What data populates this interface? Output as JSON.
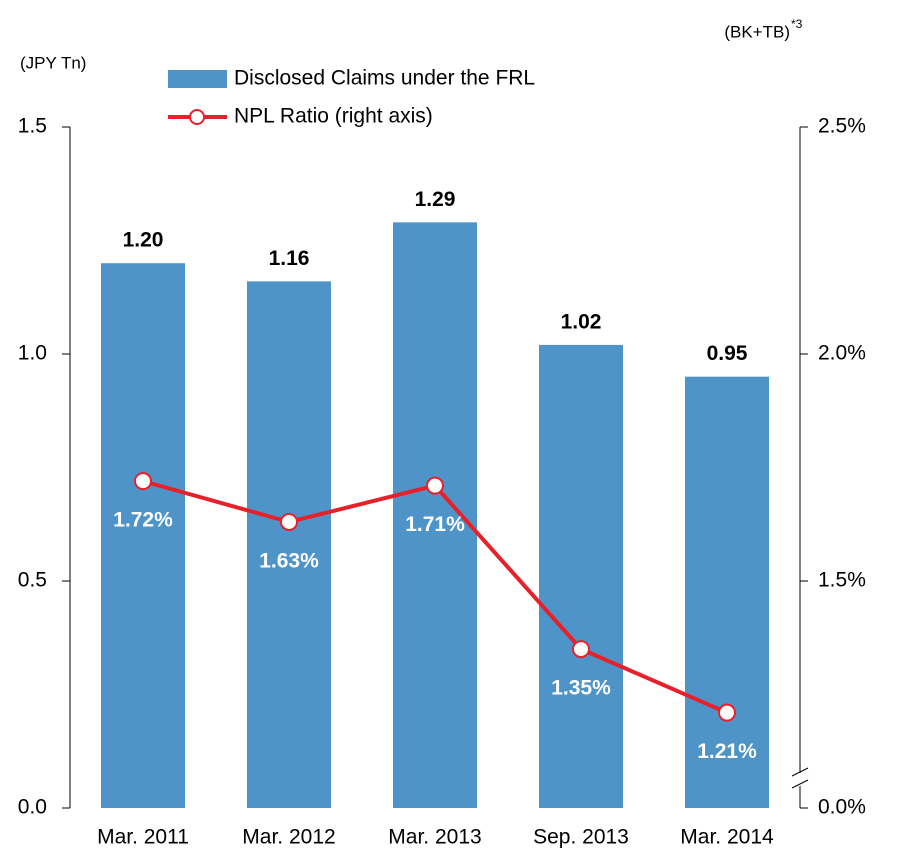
{
  "chart_data": {
    "type": "bar_line",
    "y_unit": "(JPY Tn)",
    "y2_unit": "(BK+TB)",
    "y2_unit_note": "*3",
    "categories": [
      "Mar. 2011",
      "Mar. 2012",
      "Mar. 2013",
      "Sep. 2013",
      "Mar. 2014"
    ],
    "series": [
      {
        "name": "Disclosed Claims under the FRL",
        "type": "bar",
        "color": "#4f94c9",
        "values": [
          1.2,
          1.16,
          1.29,
          1.02,
          0.95
        ],
        "value_labels": [
          "1.20",
          "1.16",
          "1.29",
          "1.02",
          "0.95"
        ]
      },
      {
        "name": "NPL Ratio (right axis)",
        "type": "line",
        "axis": "y2",
        "color": "#e8202a",
        "values": [
          1.72,
          1.63,
          1.71,
          1.35,
          1.21
        ],
        "value_labels": [
          "1.72%",
          "1.63%",
          "1.71%",
          "1.35%",
          "1.21%"
        ]
      }
    ],
    "ylim": [
      0,
      1.5
    ],
    "yticks": [
      {
        "value": 0,
        "label": "0.0"
      },
      0.5,
      {
        "value": 1,
        "label": "1.0"
      },
      1.5
    ],
    "y2lim": [
      0,
      2.5
    ],
    "y2_break": [
      0,
      1.0
    ],
    "y2ticks": [
      {
        "value": 0,
        "label": "0.0%"
      },
      {
        "value": 1.5,
        "label": "1.5%"
      },
      {
        "value": 2,
        "label": "2.0%"
      },
      {
        "value": 2.5,
        "label": "2.5%"
      }
    ],
    "grid": false
  }
}
